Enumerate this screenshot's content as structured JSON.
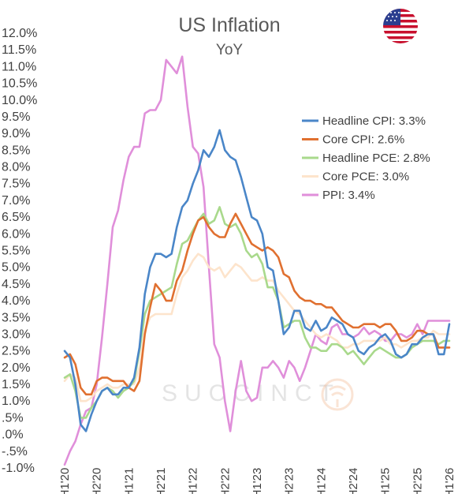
{
  "chart_data": {
    "type": "line",
    "title": "US Inflation",
    "subtitle": "YoY",
    "watermark": "SUCCINCT",
    "flag_icon": "us-flag-icon",
    "ylim": [
      -1.0,
      12.0
    ],
    "yticks": [
      12.0,
      11.5,
      11.0,
      10.5,
      10.0,
      9.5,
      9.0,
      8.5,
      8.0,
      7.5,
      7.0,
      6.5,
      6.0,
      5.5,
      5.0,
      4.5,
      4.0,
      3.5,
      3.0,
      2.5,
      2.0,
      1.5,
      1.0,
      0.5,
      0.0,
      -0.5,
      -1.0
    ],
    "ytick_labels": [
      "12.0%",
      "11.5%",
      "11.0%",
      "10.5%",
      "10.0%",
      "9.5%",
      "9.0%",
      "8.5%",
      "8.0%",
      "7.5%",
      "7.0%",
      "6.5%",
      "6.0%",
      "5.5%",
      "5.0%",
      "4.5%",
      "4.0%",
      "3.5%",
      "3.0%",
      "2.5%",
      "2.0%",
      "1.5%",
      "1.0%",
      ".5%",
      ".0%",
      "-.5%",
      "-1.0%"
    ],
    "xlim": [
      "2020-01",
      "2026-01"
    ],
    "xticks": [
      {
        "date": "2020-01",
        "label": "H1'20"
      },
      {
        "date": "2020-07",
        "label": "H2'20"
      },
      {
        "date": "2021-01",
        "label": "H1'21"
      },
      {
        "date": "2021-07",
        "label": "H2'21"
      },
      {
        "date": "2022-01",
        "label": "H1'22"
      },
      {
        "date": "2022-07",
        "label": "H2'22"
      },
      {
        "date": "2023-01",
        "label": "H1'23"
      },
      {
        "date": "2023-07",
        "label": "H2'23"
      },
      {
        "date": "2024-01",
        "label": "H1'24"
      },
      {
        "date": "2024-07",
        "label": "H2'24"
      },
      {
        "date": "2025-01",
        "label": "H1'25"
      },
      {
        "date": "2025-07",
        "label": "H2'25"
      },
      {
        "date": "2026-01",
        "label": "H1'26"
      }
    ],
    "grid": false,
    "legend_position": "right",
    "start": "2020-01",
    "series": [
      {
        "name": "Headline CPI",
        "legend_label": "Headline CPI: 3.3%",
        "color": "#4a86c8",
        "values": [
          2.5,
          2.3,
          1.5,
          0.3,
          0.1,
          0.6,
          1.0,
          1.3,
          1.4,
          1.2,
          1.2,
          1.4,
          1.4,
          1.7,
          2.6,
          4.2,
          5.0,
          5.4,
          5.4,
          5.3,
          5.4,
          6.2,
          6.8,
          7.0,
          7.5,
          7.9,
          8.5,
          8.3,
          8.6,
          9.1,
          8.5,
          8.3,
          8.2,
          7.7,
          7.1,
          6.5,
          6.4,
          6.0,
          5.0,
          4.9,
          4.0,
          3.0,
          3.2,
          3.7,
          3.7,
          3.2,
          3.1,
          3.4,
          3.1,
          3.2,
          3.5,
          3.4,
          3.3,
          3.0,
          2.9,
          2.5,
          2.4,
          2.6,
          2.7,
          2.9,
          3.0,
          2.8,
          2.4,
          2.3,
          2.4,
          2.7,
          2.7,
          2.9,
          3.0,
          3.0,
          2.4,
          2.4,
          3.3
        ]
      },
      {
        "name": "Core CPI",
        "legend_label": "Core CPI: 2.6%",
        "color": "#e07030",
        "values": [
          2.3,
          2.4,
          2.1,
          1.4,
          1.2,
          1.2,
          1.6,
          1.7,
          1.7,
          1.6,
          1.6,
          1.6,
          1.4,
          1.3,
          1.6,
          3.0,
          3.8,
          4.5,
          4.3,
          4.0,
          4.0,
          4.6,
          4.9,
          5.5,
          6.0,
          6.4,
          6.5,
          6.2,
          6.0,
          5.9,
          5.9,
          6.3,
          6.6,
          6.3,
          6.0,
          5.7,
          5.6,
          5.5,
          5.6,
          5.5,
          5.3,
          4.8,
          4.7,
          4.3,
          4.1,
          4.0,
          4.0,
          3.9,
          3.9,
          3.8,
          3.8,
          3.6,
          3.4,
          3.3,
          3.2,
          3.2,
          3.3,
          3.3,
          3.3,
          3.2,
          3.3,
          3.3,
          3.1,
          2.8,
          2.8,
          2.9,
          3.1,
          3.1,
          3.0,
          3.0,
          2.6,
          2.6,
          2.6
        ]
      },
      {
        "name": "Headline PCE",
        "legend_label": "Headline PCE: 2.8%",
        "color": "#a9d98c",
        "values": [
          1.7,
          1.8,
          1.3,
          0.5,
          0.5,
          0.8,
          1.0,
          1.3,
          1.4,
          1.3,
          1.1,
          1.3,
          1.4,
          1.6,
          2.5,
          3.6,
          4.0,
          4.1,
          4.2,
          4.3,
          4.4,
          5.1,
          5.7,
          5.8,
          6.1,
          6.4,
          6.6,
          6.3,
          6.4,
          6.8,
          6.3,
          6.2,
          6.3,
          6.0,
          5.5,
          5.3,
          5.4,
          5.1,
          4.4,
          4.4,
          4.0,
          3.2,
          3.3,
          3.4,
          3.4,
          2.9,
          2.6,
          2.6,
          2.5,
          2.5,
          2.7,
          2.7,
          2.6,
          2.4,
          2.5,
          2.3,
          2.1,
          2.3,
          2.5,
          2.6,
          2.5,
          2.4,
          2.3,
          2.3,
          2.4,
          2.6,
          2.7,
          2.8,
          2.8,
          2.8,
          2.7,
          2.8,
          2.8
        ]
      },
      {
        "name": "Core PCE",
        "legend_label": "Core PCE: 3.0%",
        "color": "#fde4cc",
        "values": [
          1.6,
          1.8,
          1.7,
          1.0,
          1.0,
          1.1,
          1.3,
          1.4,
          1.5,
          1.4,
          1.4,
          1.5,
          1.5,
          1.5,
          2.0,
          3.1,
          3.5,
          3.6,
          3.6,
          3.6,
          3.6,
          4.2,
          4.7,
          4.9,
          5.2,
          5.4,
          5.3,
          5.0,
          4.9,
          5.0,
          4.7,
          4.9,
          5.1,
          5.0,
          4.8,
          4.6,
          4.6,
          4.7,
          4.6,
          4.6,
          4.3,
          4.1,
          3.9,
          3.7,
          3.6,
          3.4,
          3.2,
          3.0,
          2.9,
          3.0,
          2.9,
          2.8,
          2.6,
          2.6,
          2.7,
          2.7,
          2.8,
          2.8,
          2.8,
          2.8,
          2.9,
          2.7,
          2.7,
          2.6,
          2.7,
          2.8,
          2.8,
          2.9,
          2.9,
          3.1,
          3.0,
          3.0,
          3.0
        ]
      },
      {
        "name": "PPI",
        "legend_label": "PPI: 3.4%",
        "color": "#e08fda",
        "values": [
          -0.9,
          -0.5,
          -0.2,
          0.3,
          0.7,
          0.8,
          1.5,
          2.9,
          4.5,
          6.2,
          6.7,
          7.6,
          8.3,
          8.6,
          8.6,
          9.6,
          9.7,
          9.7,
          10.0,
          11.2,
          11.0,
          10.8,
          11.3,
          9.8,
          8.6,
          8.4,
          7.4,
          5.0,
          2.7,
          2.3,
          1.0,
          0.1,
          1.3,
          2.2,
          1.3,
          1.0,
          1.1,
          2.0,
          2.0,
          2.2,
          2.0,
          1.7,
          2.2,
          2.0,
          1.6,
          2.0,
          2.5,
          3.0,
          2.8,
          2.7,
          3.2,
          3.3,
          3.0,
          3.0,
          2.9,
          3.0,
          3.2,
          3.0,
          3.1,
          3.0,
          2.8,
          2.8,
          3.0,
          3.0,
          2.9,
          3.0,
          3.3,
          3.0,
          3.4,
          3.4,
          3.4,
          3.4,
          3.4
        ]
      }
    ]
  }
}
